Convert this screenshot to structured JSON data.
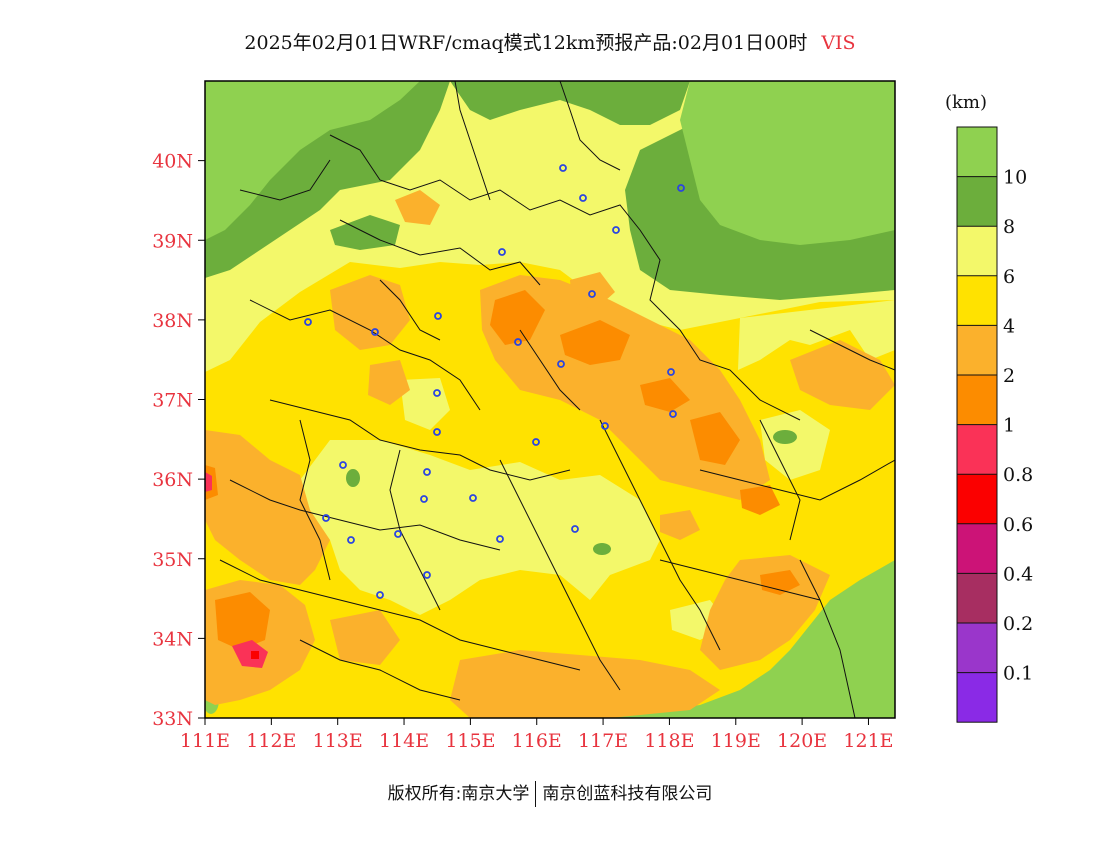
{
  "header": {
    "title": "2025年02月01日WRF/cmaq模式12km预报产品:02月01日00时",
    "variable": "VIS"
  },
  "axes": {
    "lat_labels": [
      "40N",
      "39N",
      "38N",
      "37N",
      "36N",
      "35N",
      "34N",
      "33N"
    ],
    "lon_labels": [
      "111E",
      "112E",
      "113E",
      "114E",
      "115E",
      "116E",
      "117E",
      "118E",
      "119E",
      "120E",
      "121E"
    ],
    "lat_range": [
      33,
      41
    ],
    "lon_range": [
      111,
      121.4
    ],
    "tick_color": "#e8343f"
  },
  "legend": {
    "unit": "(km)",
    "levels": [
      "10",
      "8",
      "6",
      "4",
      "2",
      "1",
      "0.8",
      "0.6",
      "0.4",
      "0.2",
      "0.1"
    ],
    "colors": [
      "#8fd150",
      "#6cae3c",
      "#f3f86a",
      "#ffe200",
      "#fbb12c",
      "#fc8c00",
      "#fa3257",
      "#fb0000",
      "#cc1377",
      "#a72e61",
      "#9a36cb",
      "#8a2ae6"
    ]
  },
  "footer": {
    "copyright": "版权所有:南京大学",
    "company": "南京创蓝科技有限公司"
  }
}
